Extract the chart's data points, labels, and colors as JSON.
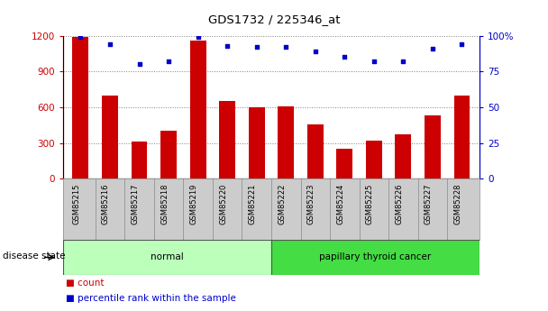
{
  "title": "GDS1732 / 225346_at",
  "samples": [
    "GSM85215",
    "GSM85216",
    "GSM85217",
    "GSM85218",
    "GSM85219",
    "GSM85220",
    "GSM85221",
    "GSM85222",
    "GSM85223",
    "GSM85224",
    "GSM85225",
    "GSM85226",
    "GSM85227",
    "GSM85228"
  ],
  "counts": [
    1190,
    700,
    310,
    400,
    1160,
    650,
    600,
    610,
    460,
    255,
    320,
    370,
    530,
    700
  ],
  "percentiles": [
    99,
    94,
    80,
    82,
    99,
    93,
    92,
    92,
    89,
    85,
    82,
    82,
    91,
    94
  ],
  "bar_color": "#CC0000",
  "dot_color": "#0000CC",
  "left_axis_color": "#CC0000",
  "right_axis_color": "#0000CC",
  "left_ylim": [
    0,
    1200
  ],
  "right_ylim": [
    0,
    100
  ],
  "left_yticks": [
    0,
    300,
    600,
    900,
    1200
  ],
  "right_yticks": [
    0,
    25,
    50,
    75,
    100
  ],
  "right_yticklabels": [
    "0",
    "25",
    "50",
    "75",
    "100%"
  ],
  "group_normal_color": "#BBFFBB",
  "group_cancer_color": "#44DD44",
  "tick_area_color": "#CCCCCC",
  "disease_state_label": "disease state",
  "figsize": [
    6.08,
    3.45
  ],
  "dpi": 100
}
